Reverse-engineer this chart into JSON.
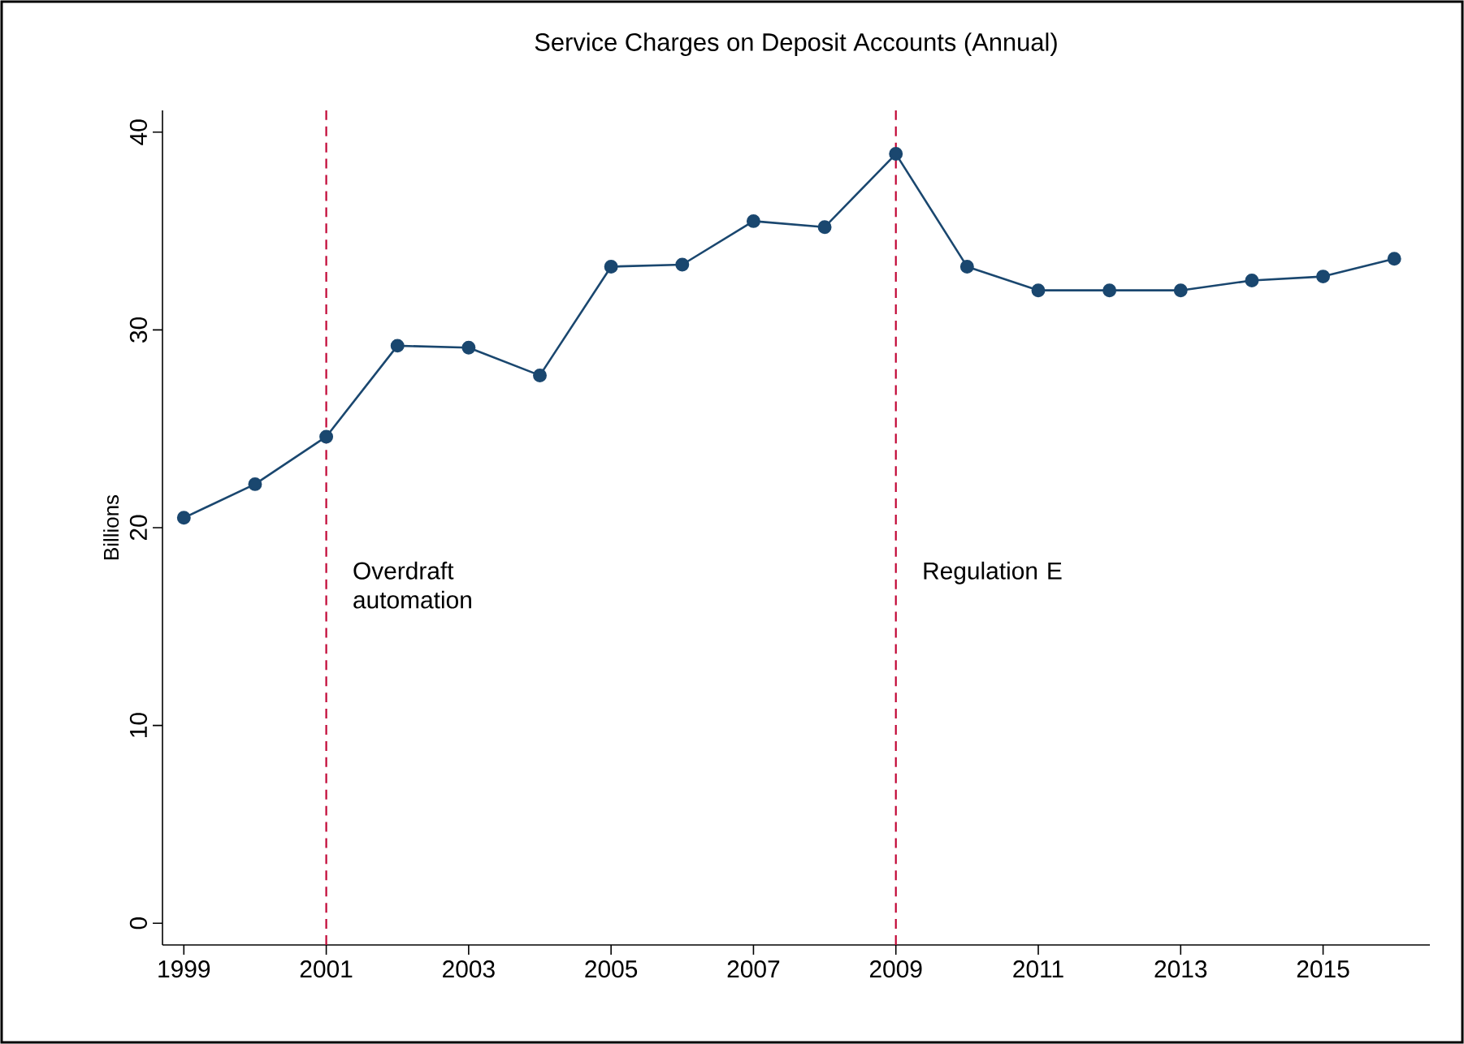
{
  "chart_data": {
    "type": "line",
    "title": "Service Charges on Deposit Accounts (Annual)",
    "ylabel": "Billions",
    "x": [
      1999,
      2000,
      2001,
      2002,
      2003,
      2004,
      2005,
      2006,
      2007,
      2008,
      2009,
      2010,
      2011,
      2012,
      2013,
      2014,
      2015,
      2016
    ],
    "series": [
      {
        "color": "#1a476f",
        "values": [
          20.5,
          22.2,
          24.6,
          29.2,
          29.1,
          27.7,
          33.2,
          33.3,
          35.5,
          35.2,
          38.9,
          33.2,
          32.0,
          32.0,
          32.0,
          32.5,
          32.7,
          33.6
        ]
      }
    ],
    "xlim": [
      1998.7,
      2016.5
    ],
    "xticks": [
      1999,
      2001,
      2003,
      2005,
      2007,
      2009,
      2011,
      2013,
      2015
    ],
    "ylim": [
      -1.1,
      41.1
    ],
    "yticks": [
      0,
      10,
      20,
      30,
      40
    ],
    "ref_lines": [
      {
        "axis": "x",
        "value": 2001,
        "label": "Overdraft automation",
        "color": "#c10534",
        "line_style": "dashed"
      },
      {
        "axis": "x",
        "value": 2009,
        "label": "Regulation E",
        "color": "#c10534",
        "line_style": "dashed"
      }
    ],
    "marker": "circle",
    "line_style": "solid"
  }
}
